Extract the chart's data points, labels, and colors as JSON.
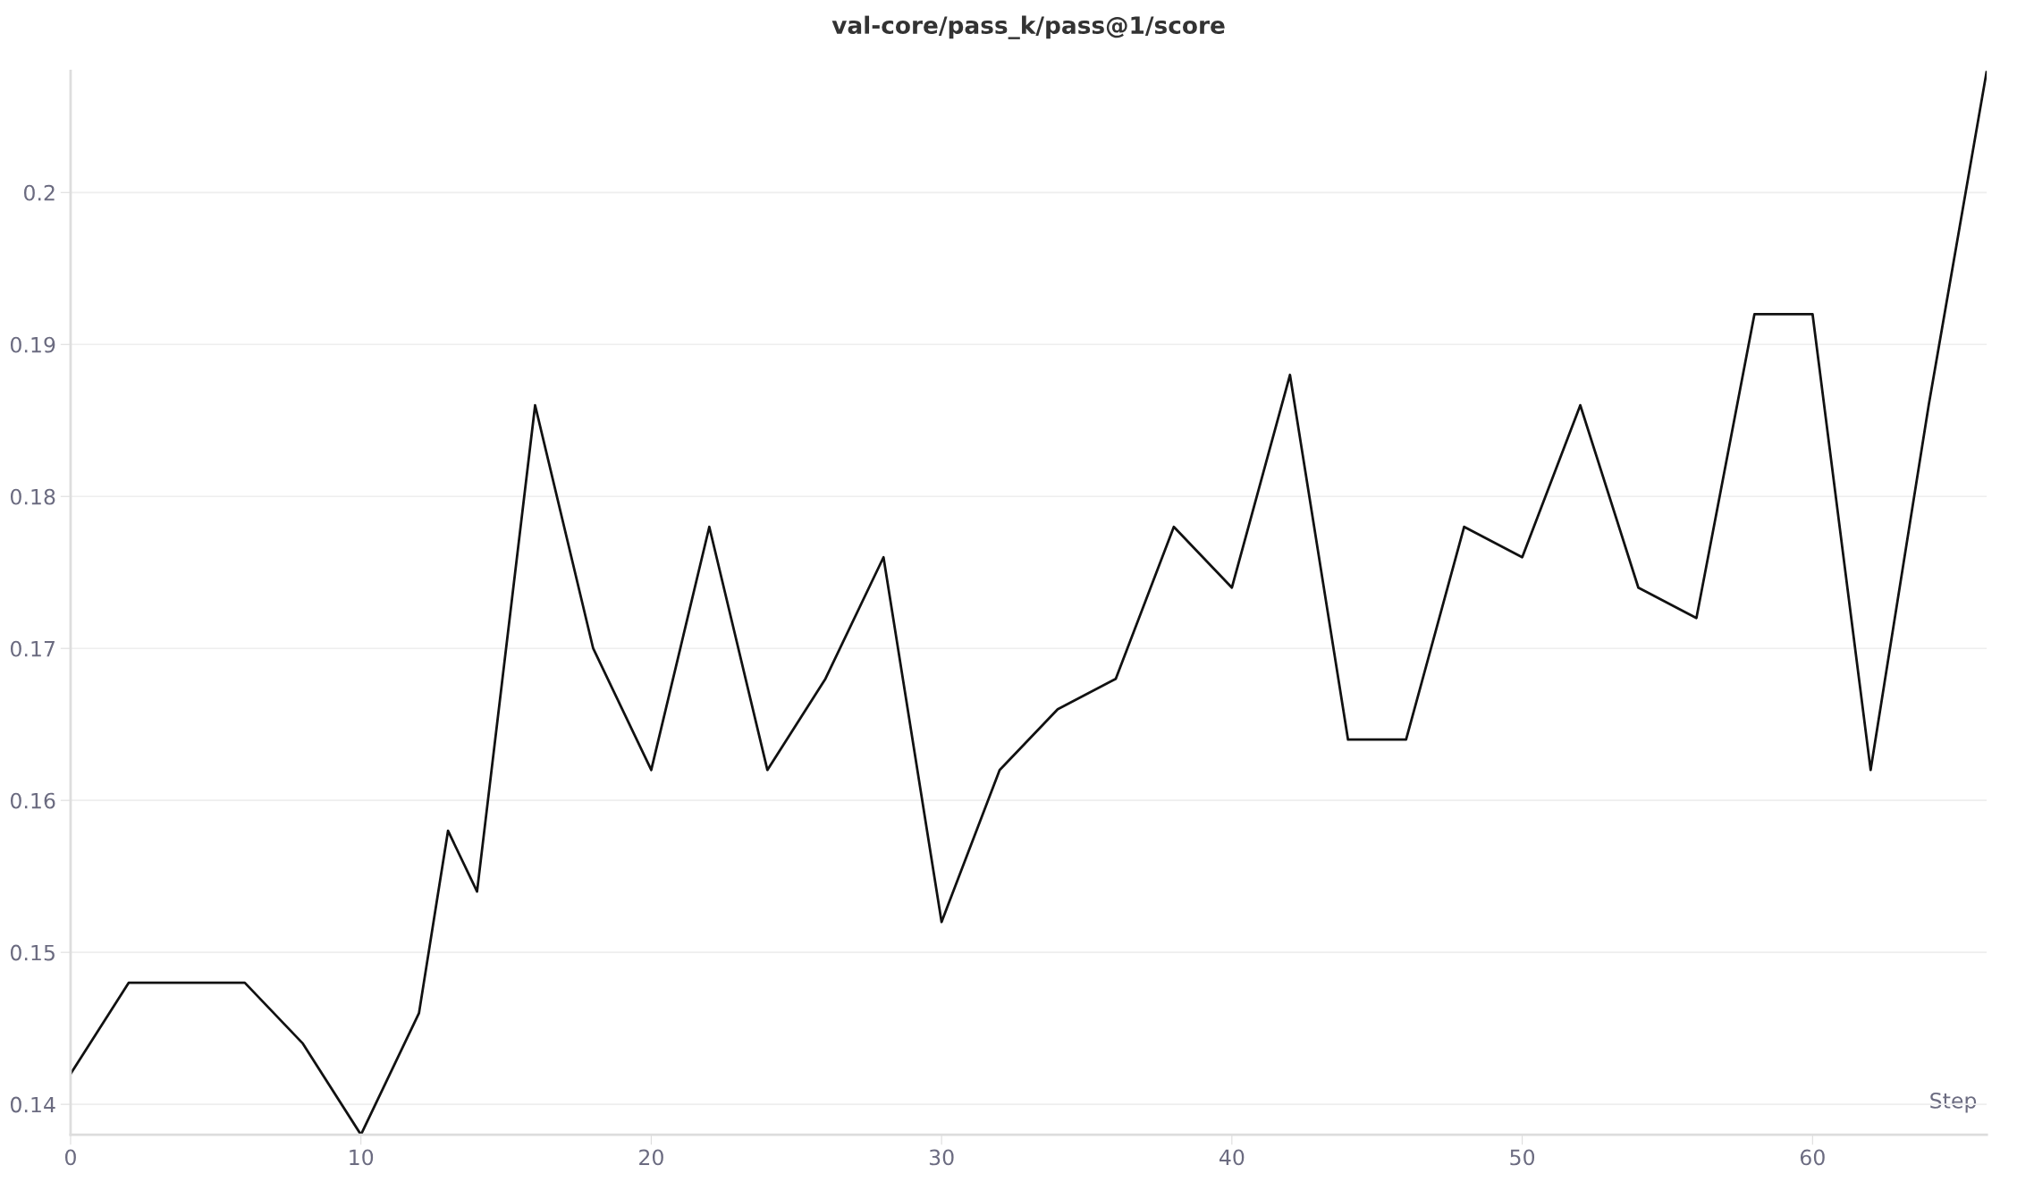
{
  "chart_data": {
    "type": "line",
    "title": "val-core/pass_k/pass@1/score",
    "xlabel": "Step",
    "x": [
      0,
      2,
      4,
      6,
      8,
      10,
      12,
      13,
      14,
      16,
      18,
      20,
      22,
      24,
      26,
      28,
      30,
      32,
      34,
      36,
      38,
      40,
      42,
      44,
      46,
      48,
      50,
      52,
      54,
      56,
      58,
      60,
      62,
      64,
      66
    ],
    "series": [
      {
        "color": "#111111",
        "values": [
          0.142,
          0.148,
          0.148,
          0.148,
          0.144,
          0.138,
          0.146,
          0.158,
          0.154,
          0.186,
          0.17,
          0.162,
          0.178,
          0.162,
          0.168,
          0.176,
          0.152,
          0.162,
          0.166,
          0.168,
          0.178,
          0.174,
          0.188,
          0.164,
          0.164,
          0.178,
          0.176,
          0.186,
          0.174,
          0.172,
          0.192,
          0.192,
          0.162,
          0.186,
          0.208
        ]
      }
    ],
    "xlim": [
      0,
      66
    ],
    "xticks": [
      0,
      10,
      20,
      30,
      40,
      50,
      60
    ],
    "ylim": [
      0.138,
      0.208
    ],
    "yticks": [
      0.14,
      0.15,
      0.16,
      0.17,
      0.18,
      0.19,
      0.2
    ],
    "grid": "y",
    "line_style": "solid"
  }
}
